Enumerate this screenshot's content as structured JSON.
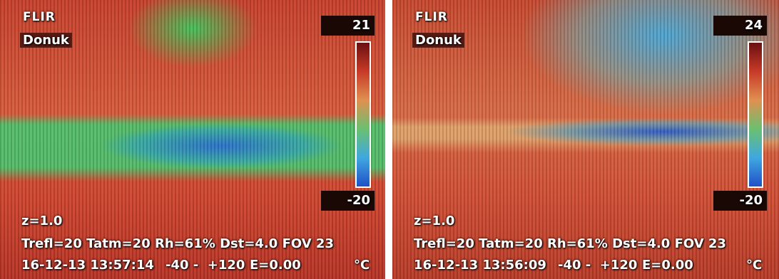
{
  "panels": [
    {
      "brand": "FLIR",
      "label": "Donuk",
      "scale_max": 21,
      "scale_min": -20,
      "zoom": "z=1.0",
      "params": "Trefl=20 Tatm=20 Rh=61% Dst=4.0 FOV 23",
      "datetime": "16-12-13 13:57:14",
      "range": "-40 -  +120",
      "emissivity": "E=0.00",
      "unit": "°C"
    },
    {
      "brand": "FLIR",
      "label": "Donuk",
      "scale_max": 24,
      "scale_min": -20,
      "zoom": "z=1.0",
      "params": "Trefl=20 Tatm=20 Rh=61% Dst=4.0 FOV 23",
      "datetime": "16-12-13 13:56:09",
      "range": "-40 -  +120",
      "emissivity": "E=0.00",
      "unit": "°C"
    }
  ]
}
